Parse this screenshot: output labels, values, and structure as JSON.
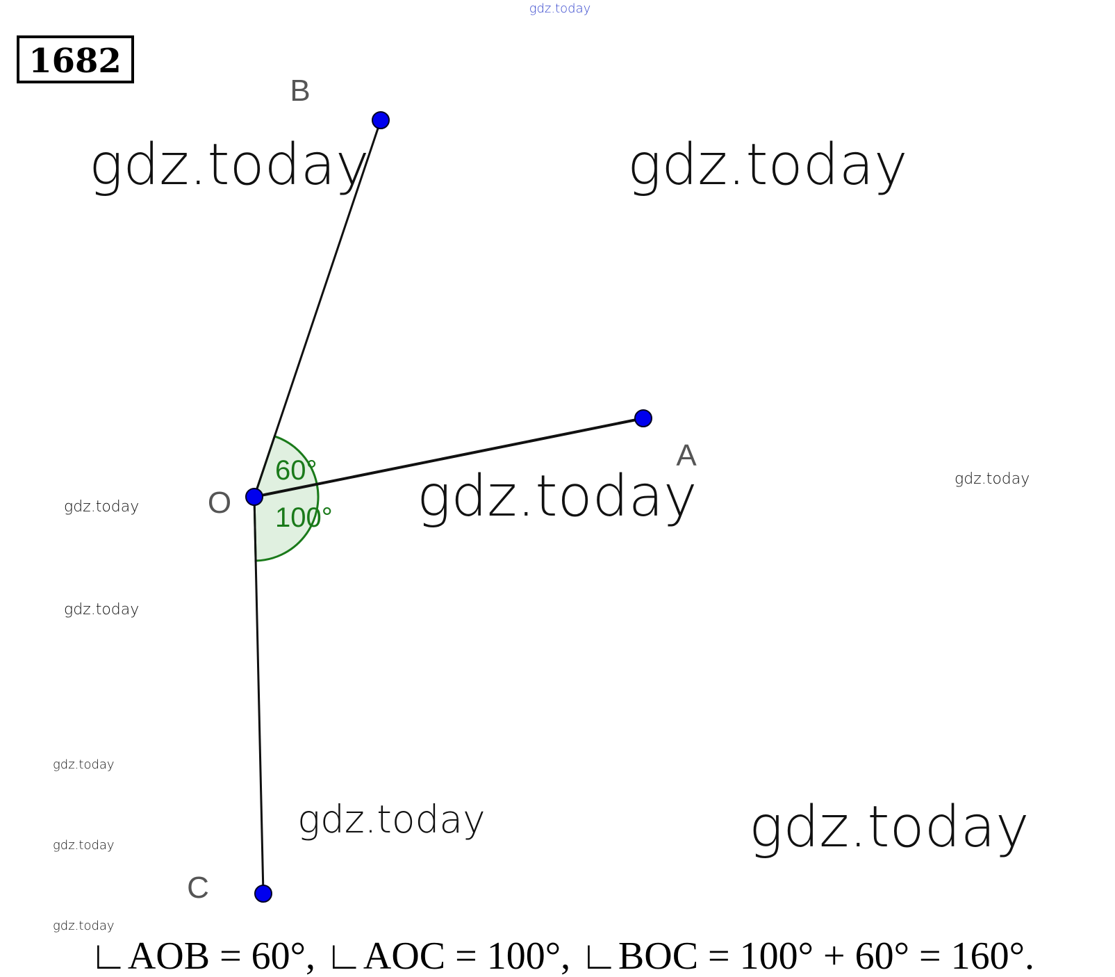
{
  "problem_number": "1682",
  "points": [
    {
      "label": "B"
    },
    {
      "label": "A"
    },
    {
      "label": "O"
    },
    {
      "label": "C"
    }
  ],
  "angles": [
    {
      "label": "60°"
    },
    {
      "label": "100°"
    }
  ],
  "solution": "∟AOB = 60°, ∟AOC = 100°, ∟BOC = 100° + 60° = 160°.",
  "watermarks": [
    "gdz.today",
    "gdz.today",
    "gdz.today",
    "gdz.today",
    "gdz.today",
    "gdz.today",
    "gdz.today",
    "gdz.today",
    "gdz.today",
    "gdz.today",
    "gdz.today",
    "gdz.today"
  ]
}
